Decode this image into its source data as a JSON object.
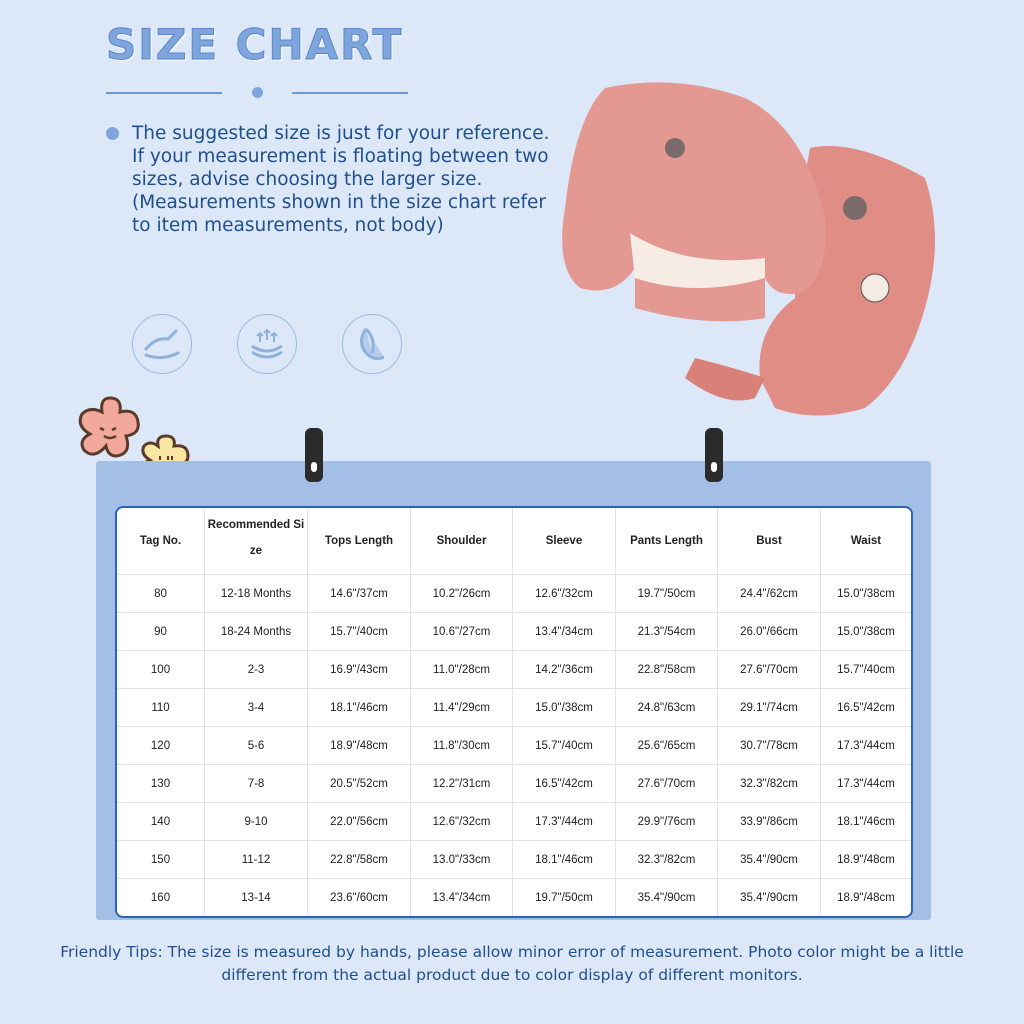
{
  "header": {
    "title": "SIZE CHART"
  },
  "note": "The suggested size is just for your reference. If your measurement is floating between two sizes, advise choosing the larger size. (Measurements shown in the size chart refer to item measurements, not body)",
  "feature_icons": [
    "hand-feel-icon",
    "stretch-icon",
    "feather-soft-icon"
  ],
  "colors": {
    "background": "#dce8f8",
    "panel": "#a3bfe6",
    "table_border": "#2d62b5",
    "text": "#1f4f8e",
    "title": "#7ea6dc",
    "garment": "#e08d86"
  },
  "table": {
    "headers": [
      "Tag No.",
      "Recommended Size",
      "Tops Length",
      "Shoulder",
      "Sleeve",
      "Pants Length",
      "Bust",
      "Waist"
    ],
    "rows": [
      [
        "80",
        "12-18 Months",
        "14.6\"/37cm",
        "10.2\"/26cm",
        "12.6\"/32cm",
        "19.7\"/50cm",
        "24.4\"/62cm",
        "15.0\"/38cm"
      ],
      [
        "90",
        "18-24 Months",
        "15.7\"/40cm",
        "10.6\"/27cm",
        "13.4\"/34cm",
        "21.3\"/54cm",
        "26.0\"/66cm",
        "15.0\"/38cm"
      ],
      [
        "100",
        "2-3",
        "16.9\"/43cm",
        "11.0\"/28cm",
        "14.2\"/36cm",
        "22.8\"/58cm",
        "27.6\"/70cm",
        "15.7\"/40cm"
      ],
      [
        "110",
        "3-4",
        "18.1\"/46cm",
        "11.4\"/29cm",
        "15.0\"/38cm",
        "24.8\"/63cm",
        "29.1\"/74cm",
        "16.5\"/42cm"
      ],
      [
        "120",
        "5-6",
        "18.9\"/48cm",
        "11.8\"/30cm",
        "15.7\"/40cm",
        "25.6\"/65cm",
        "30.7\"/78cm",
        "17.3\"/44cm"
      ],
      [
        "130",
        "7-8",
        "20.5\"/52cm",
        "12.2\"/31cm",
        "16.5\"/42cm",
        "27.6\"/70cm",
        "32.3\"/82cm",
        "17.3\"/44cm"
      ],
      [
        "140",
        "9-10",
        "22.0\"/56cm",
        "12.6\"/32cm",
        "17.3\"/44cm",
        "29.9\"/76cm",
        "33.9\"/86cm",
        "18.1\"/46cm"
      ],
      [
        "150",
        "11-12",
        "22.8\"/58cm",
        "13.0\"/33cm",
        "18.1\"/46cm",
        "32.3\"/82cm",
        "35.4\"/90cm",
        "18.9\"/48cm"
      ],
      [
        "160",
        "13-14",
        "23.6\"/60cm",
        "13.4\"/34cm",
        "19.7\"/50cm",
        "35.4\"/90cm",
        "35.4\"/90cm",
        "18.9\"/48cm"
      ]
    ]
  },
  "tips": "Friendly Tips: The size is measured by hands, please allow minor error of measurement. Photo color might be a little different from the actual product due to color display of different monitors."
}
